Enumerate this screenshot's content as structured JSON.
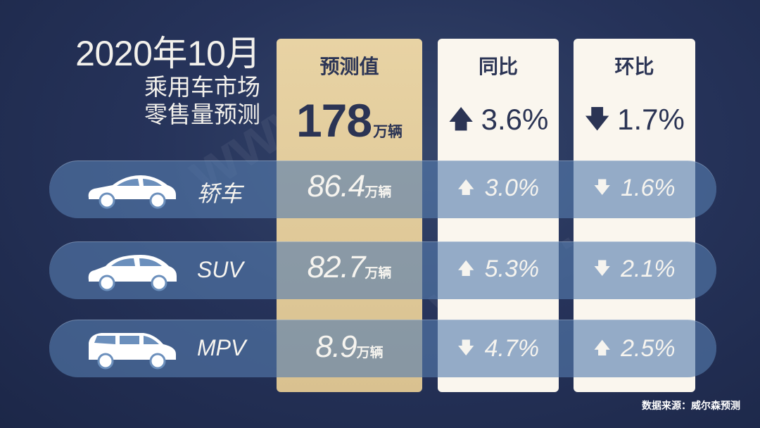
{
  "title": {
    "main": "2020年10月",
    "sub1": "乘用车市场",
    "sub2": "零售量预测"
  },
  "columns": {
    "forecast": "预测值",
    "yoy": "同比",
    "mom": "环比"
  },
  "total": {
    "forecast": "178",
    "unit": "万辆",
    "yoy": "3.6%",
    "yoy_dir": "up",
    "mom": "1.7%",
    "mom_dir": "down"
  },
  "rows": [
    {
      "label": "轿车",
      "icon": "sedan-icon",
      "value": "86.4",
      "unit": "万辆",
      "yoy": "3.0%",
      "yoy_dir": "up",
      "mom": "1.6%",
      "mom_dir": "down"
    },
    {
      "label": "SUV",
      "icon": "suv-icon",
      "value": "82.7",
      "unit": "万辆",
      "yoy": "5.3%",
      "yoy_dir": "up",
      "mom": "2.1%",
      "mom_dir": "down"
    },
    {
      "label": "MPV",
      "icon": "mpv-icon",
      "value": "8.9",
      "unit": "万辆",
      "yoy": "4.7%",
      "yoy_dir": "down",
      "mom": "2.5%",
      "mom_dir": "up"
    }
  ],
  "source": "数据来源：威尔森预测",
  "colors": {
    "background": "#26335a",
    "highlight": "#e3cc9c",
    "card": "#faf6ee",
    "band": "#557daf",
    "text_dark": "#2b3454"
  }
}
